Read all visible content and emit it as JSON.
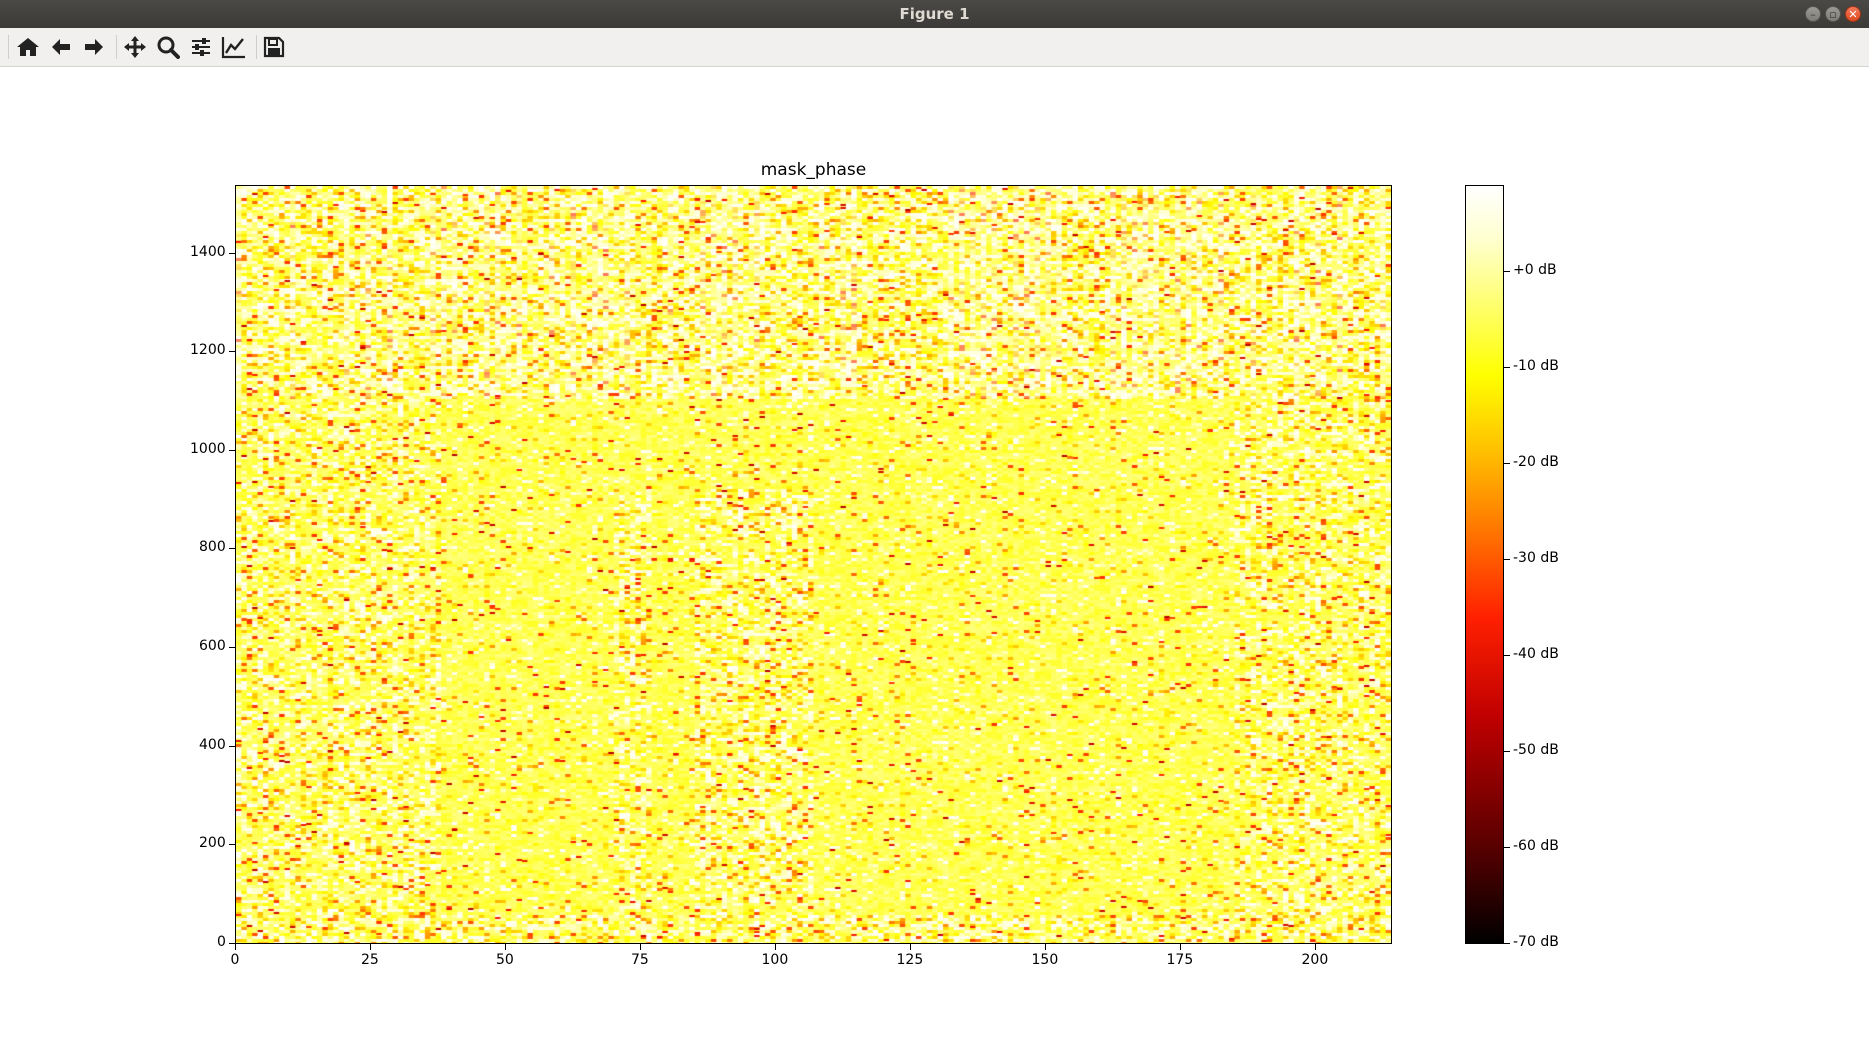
{
  "window": {
    "title": "Figure 1"
  },
  "toolbar": {
    "buttons": [
      "home-icon",
      "back-arrow-icon",
      "forward-arrow-icon",
      "pan-icon",
      "zoom-icon",
      "subplots-icon",
      "edit-axes-icon",
      "save-icon"
    ]
  },
  "chart_data": {
    "type": "heatmap",
    "title": "mask_phase",
    "xlabel": "",
    "ylabel": "",
    "xlim": [
      0,
      214
    ],
    "ylim": [
      0,
      1537
    ],
    "x_ticks": [
      "0",
      "25",
      "50",
      "75",
      "100",
      "125",
      "150",
      "175",
      "200"
    ],
    "x_tick_values": [
      0,
      25,
      50,
      75,
      100,
      125,
      150,
      175,
      200
    ],
    "y_ticks": [
      "0",
      "200",
      "400",
      "600",
      "800",
      "1000",
      "1200",
      "1400"
    ],
    "y_tick_values": [
      0,
      200,
      400,
      600,
      800,
      1000,
      1200,
      1400
    ],
    "colormap": "hot",
    "colorbar": {
      "range": [
        -70,
        9
      ],
      "ticks": [
        "+0 dB",
        "-10 dB",
        "-20 dB",
        "-30 dB",
        "-40 dB",
        "-50 dB",
        "-60 dB",
        "-70 dB"
      ],
      "tick_values": [
        0,
        -10,
        -20,
        -30,
        -40,
        -50,
        -60,
        -70
      ]
    }
  }
}
